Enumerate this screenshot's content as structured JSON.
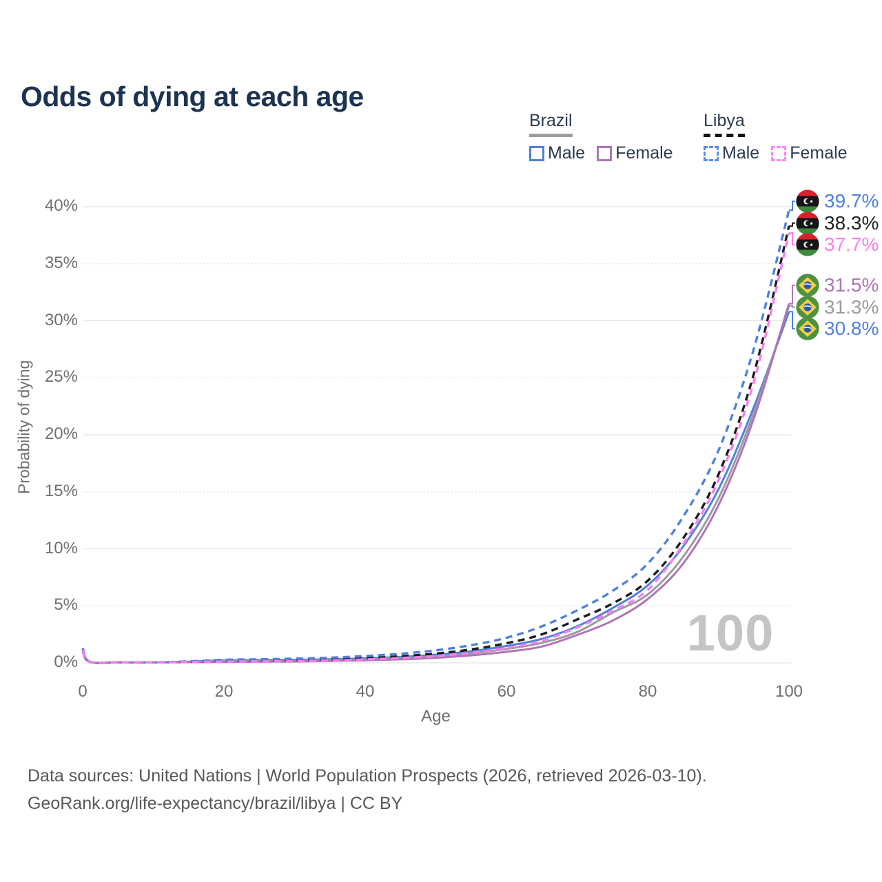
{
  "title": "Odds of dying at each age",
  "watermark": "100",
  "legend": {
    "brazil": {
      "name": "Brazil",
      "male_label": "Male",
      "female_label": "Female"
    },
    "libya": {
      "name": "Libya",
      "male_label": "Male",
      "female_label": "Female"
    }
  },
  "colors": {
    "male_blue": "#4f81dd",
    "brazil_female_plum": "#af74b5",
    "libya_female_pink": "#fb7df0",
    "total_gray": "#9b9ba0",
    "libya_total_black": "#1c1c1c",
    "title_navy": "#1c3452",
    "grid_line": "#e4e4e4",
    "tick_text": "#6f6f6f",
    "watermark_gray": "#c4c4c6",
    "footer_text": "#56585b"
  },
  "chart_data": {
    "type": "line",
    "title": "Odds of dying at each age",
    "xlabel": "Age",
    "ylabel": "Probability of dying",
    "xlim": [
      0,
      100
    ],
    "ylim": [
      0,
      40
    ],
    "grid": true,
    "x_ticks": [
      0,
      20,
      40,
      60,
      80,
      100
    ],
    "y_ticks": [
      0,
      5,
      10,
      15,
      20,
      25,
      30,
      35,
      40
    ],
    "y_tick_labels": [
      "0%",
      "5%",
      "10%",
      "15%",
      "20%",
      "25%",
      "30%",
      "35%",
      "40%"
    ],
    "ages": [
      0,
      1,
      5,
      10,
      15,
      20,
      25,
      30,
      35,
      40,
      45,
      50,
      55,
      60,
      65,
      70,
      75,
      80,
      85,
      90,
      95,
      100
    ],
    "series": [
      {
        "name": "Brazil Male",
        "country": "brazil",
        "sex": "male",
        "style": "solid",
        "color": "#4f81dd",
        "end_label": "30.8%",
        "values": [
          1.15,
          0.09,
          0.04,
          0.04,
          0.1,
          0.22,
          0.25,
          0.27,
          0.32,
          0.4,
          0.52,
          0.72,
          1.02,
          1.48,
          2.1,
          3.2,
          4.8,
          6.8,
          10.2,
          15.2,
          22.4,
          30.8
        ]
      },
      {
        "name": "Brazil Both sexes",
        "country": "brazil",
        "sex": "both",
        "style": "solid",
        "color": "#9b9ba0",
        "end_label": "31.3%",
        "values": [
          1.05,
          0.08,
          0.04,
          0.04,
          0.08,
          0.15,
          0.17,
          0.19,
          0.24,
          0.31,
          0.41,
          0.58,
          0.84,
          1.22,
          1.76,
          2.7,
          4.4,
          6.0,
          9.3,
          14.4,
          21.9,
          31.3
        ]
      },
      {
        "name": "Brazil Female",
        "country": "brazil",
        "sex": "female",
        "style": "solid",
        "color": "#af74b5",
        "end_label": "31.5%",
        "values": [
          0.95,
          0.07,
          0.03,
          0.03,
          0.06,
          0.08,
          0.1,
          0.12,
          0.17,
          0.23,
          0.31,
          0.45,
          0.66,
          0.97,
          1.43,
          2.45,
          3.7,
          5.6,
          8.7,
          13.8,
          21.4,
          31.5
        ]
      },
      {
        "name": "Libya Both sexes",
        "country": "libya",
        "sex": "both",
        "style": "dashed",
        "color": "#1c1c1c",
        "end_label": "38.3%",
        "values": [
          1.25,
          0.09,
          0.05,
          0.05,
          0.1,
          0.18,
          0.21,
          0.25,
          0.32,
          0.43,
          0.58,
          0.82,
          1.18,
          1.72,
          2.5,
          3.8,
          5.2,
          7.2,
          10.9,
          16.5,
          25.3,
          38.3
        ]
      },
      {
        "name": "Libya Male",
        "country": "libya",
        "sex": "male",
        "style": "dashed",
        "color": "#4f81dd",
        "end_label": "39.7%",
        "values": [
          1.3,
          0.1,
          0.05,
          0.05,
          0.13,
          0.27,
          0.31,
          0.37,
          0.46,
          0.6,
          0.8,
          1.1,
          1.55,
          2.2,
          3.2,
          4.6,
          6.3,
          8.7,
          12.8,
          18.6,
          27.5,
          39.7
        ]
      },
      {
        "name": "Libya Female",
        "country": "libya",
        "sex": "female",
        "style": "dashed",
        "color": "#fb7df0",
        "end_label": "37.7%",
        "values": [
          1.15,
          0.08,
          0.04,
          0.04,
          0.08,
          0.11,
          0.13,
          0.16,
          0.22,
          0.3,
          0.42,
          0.6,
          0.88,
          1.3,
          1.95,
          3.1,
          4.55,
          6.4,
          10.4,
          16.0,
          24.6,
          37.7
        ]
      }
    ]
  },
  "footer": {
    "line1": "Data sources: United Nations | World Population Prospects (2026, retrieved 2026-03-10).",
    "line2": "GeoRank.org/life-expectancy/brazil/libya | CC BY"
  }
}
